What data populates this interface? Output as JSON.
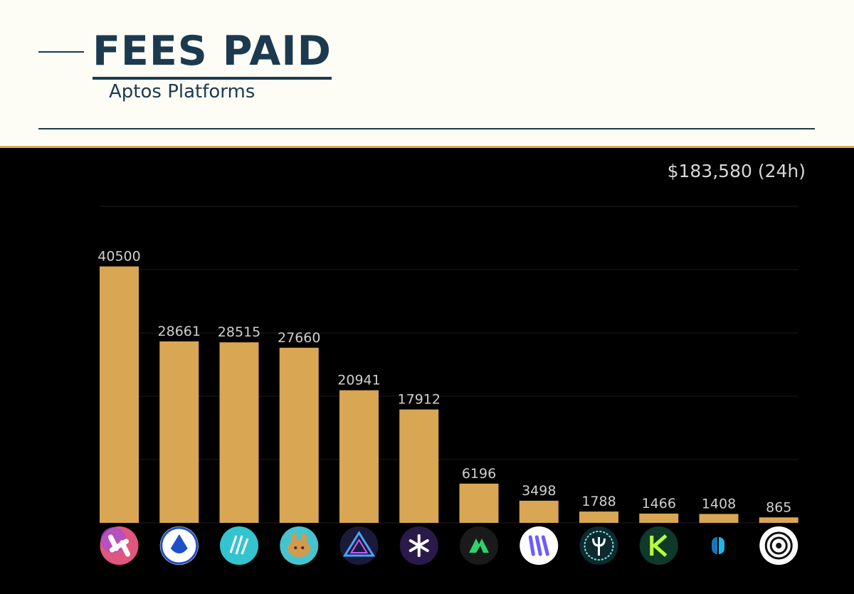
{
  "header": {
    "title": "FEES PAID",
    "subtitle": "Aptos Platforms"
  },
  "total_label": "$183,580 (24h)",
  "colors": {
    "bar": "#d9a654",
    "header_text": "#1c3a4f",
    "accent_line": "#d9b34f",
    "panel_bg": "#000000"
  },
  "chart_data": {
    "type": "bar",
    "title": "FEES PAID",
    "subtitle": "Aptos Platforms",
    "categories": [
      "",
      "",
      "",
      "",
      "",
      "",
      "",
      "",
      "",
      "",
      "",
      ""
    ],
    "icons": [
      "hyperion-logo-icon",
      "aries-logo-icon",
      "thala-logo-icon",
      "pancakeswap-logo-icon",
      "pyramid-logo-icon",
      "star-logo-icon",
      "merkle-logo-icon",
      "kana-logo-icon",
      "trident-logo-icon",
      "k-logo-icon",
      "pill-logo-icon",
      "spiral-logo-icon"
    ],
    "values": [
      40500,
      28661,
      28515,
      27660,
      20941,
      17912,
      6196,
      3498,
      1788,
      1466,
      1408,
      865
    ],
    "ylim": [
      0,
      50000
    ],
    "grid": true,
    "xlabel": "",
    "ylabel": ""
  }
}
